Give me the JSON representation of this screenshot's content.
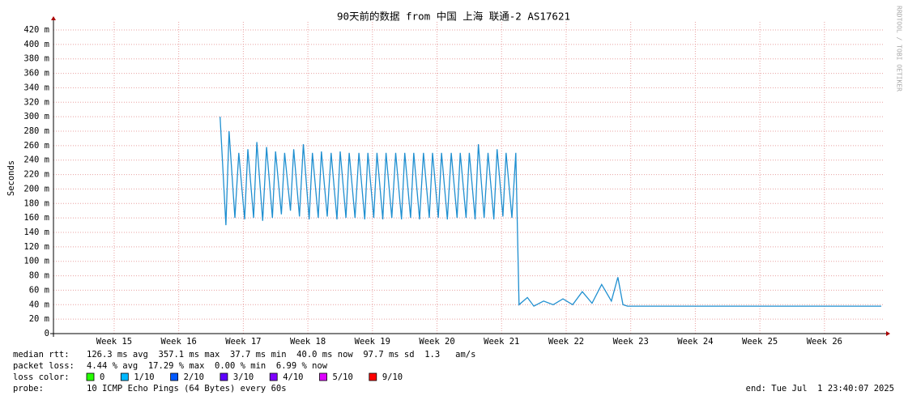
{
  "chart_data": {
    "type": "line",
    "title": "90天前的数据 from 中国 上海 联通-2 AS17621",
    "y_label": "Seconds",
    "watermark": "RRDTOOL / TOBI OETIKER",
    "grid": true,
    "xlim": [
      14.06,
      26.93
    ],
    "xticks": [
      {
        "value": 15,
        "label": "Week 15"
      },
      {
        "value": 16,
        "label": "Week 16"
      },
      {
        "value": 17,
        "label": "Week 17"
      },
      {
        "value": 18,
        "label": "Week 18"
      },
      {
        "value": 19,
        "label": "Week 19"
      },
      {
        "value": 20,
        "label": "Week 20"
      },
      {
        "value": 21,
        "label": "Week 21"
      },
      {
        "value": 22,
        "label": "Week 22"
      },
      {
        "value": 23,
        "label": "Week 23"
      },
      {
        "value": 24,
        "label": "Week 24"
      },
      {
        "value": 25,
        "label": "Week 25"
      },
      {
        "value": 26,
        "label": "Week 26"
      }
    ],
    "ylim": [
      0,
      420
    ],
    "yticks": [
      0,
      {
        "value": 20,
        "label": "20 m"
      },
      {
        "value": 40,
        "label": "40 m"
      },
      {
        "value": 60,
        "label": "60 m"
      },
      {
        "value": 80,
        "label": "80 m"
      },
      {
        "value": 100,
        "label": "100 m"
      },
      {
        "value": 120,
        "label": "120 m"
      },
      {
        "value": 140,
        "label": "140 m"
      },
      {
        "value": 160,
        "label": "160 m"
      },
      {
        "value": 180,
        "label": "180 m"
      },
      {
        "value": 200,
        "label": "200 m"
      },
      {
        "value": 220,
        "label": "220 m"
      },
      {
        "value": 240,
        "label": "240 m"
      },
      {
        "value": 260,
        "label": "260 m"
      },
      {
        "value": 280,
        "label": "280 m"
      },
      {
        "value": 300,
        "label": "300 m"
      },
      {
        "value": 320,
        "label": "320 m"
      },
      {
        "value": 340,
        "label": "340 m"
      },
      {
        "value": 360,
        "label": "360 m"
      },
      {
        "value": 380,
        "label": "380 m"
      },
      {
        "value": 400,
        "label": "400 m"
      },
      {
        "value": 420,
        "label": "420 m"
      }
    ],
    "x": [
      16.64,
      16.73,
      16.78,
      16.87,
      16.93,
      17.02,
      17.07,
      17.16,
      17.21,
      17.3,
      17.36,
      17.45,
      17.5,
      17.59,
      17.64,
      17.73,
      17.78,
      17.87,
      17.93,
      18.02,
      18.07,
      18.16,
      18.21,
      18.3,
      18.36,
      18.45,
      18.5,
      18.59,
      18.64,
      18.73,
      18.79,
      18.88,
      18.93,
      19.02,
      19.07,
      19.16,
      19.21,
      19.3,
      19.36,
      19.45,
      19.5,
      19.59,
      19.64,
      19.73,
      19.79,
      19.88,
      19.93,
      20.02,
      20.07,
      20.16,
      20.22,
      20.31,
      20.36,
      20.45,
      20.5,
      20.59,
      20.64,
      20.73,
      20.79,
      20.88,
      20.93,
      21.02,
      21.07,
      21.16,
      21.22,
      21.27,
      21.4,
      21.5,
      21.65,
      21.8,
      21.95,
      22.1,
      22.25,
      22.4,
      22.55,
      22.7,
      22.8,
      22.88,
      22.95,
      24.0,
      25.0,
      26.0,
      26.88
    ],
    "series": [
      {
        "color": "#1f8fd0",
        "values": [
          300,
          150,
          280,
          160,
          250,
          158,
          255,
          160,
          265,
          156,
          258,
          160,
          252,
          165,
          250,
          170,
          255,
          162,
          262,
          158,
          250,
          160,
          252,
          162,
          250,
          158,
          252,
          160,
          250,
          160,
          250,
          158,
          250,
          160,
          250,
          158,
          250,
          160,
          250,
          158,
          250,
          160,
          250,
          158,
          250,
          160,
          250,
          160,
          250,
          158,
          250,
          160,
          250,
          160,
          250,
          158,
          262,
          160,
          250,
          158,
          255,
          162,
          250,
          160,
          250,
          40,
          50,
          38,
          45,
          40,
          48,
          40,
          58,
          42,
          68,
          45,
          78,
          40,
          38,
          38,
          38,
          38,
          38
        ]
      }
    ],
    "footer": {
      "rtt_label": "median rtt:",
      "rtt": "126.3 ms avg  357.1 ms max  37.7 ms min  40.0 ms now  97.7 ms sd  1.3   am/s",
      "loss_label": "packet loss:",
      "loss": "4.44 % avg  17.29 % max  0.00 % min  6.99 % now",
      "color_label": "loss color:",
      "loss_colors": [
        {
          "name": "0",
          "color": "#26ff00"
        },
        {
          "name": "1/10",
          "color": "#00b8ff"
        },
        {
          "name": "2/10",
          "color": "#0059ff"
        },
        {
          "name": "3/10",
          "color": "#5e00ff"
        },
        {
          "name": "4/10",
          "color": "#7e00ff"
        },
        {
          "name": "5/10",
          "color": "#dd00ff"
        },
        {
          "name": "9/10",
          "color": "#ff0000"
        }
      ],
      "probe_label": "probe:",
      "probe": "10 ICMP Echo Pings (64 Bytes) every 60s",
      "end": "end: Tue Jul  1 23:40:07 2025"
    }
  }
}
